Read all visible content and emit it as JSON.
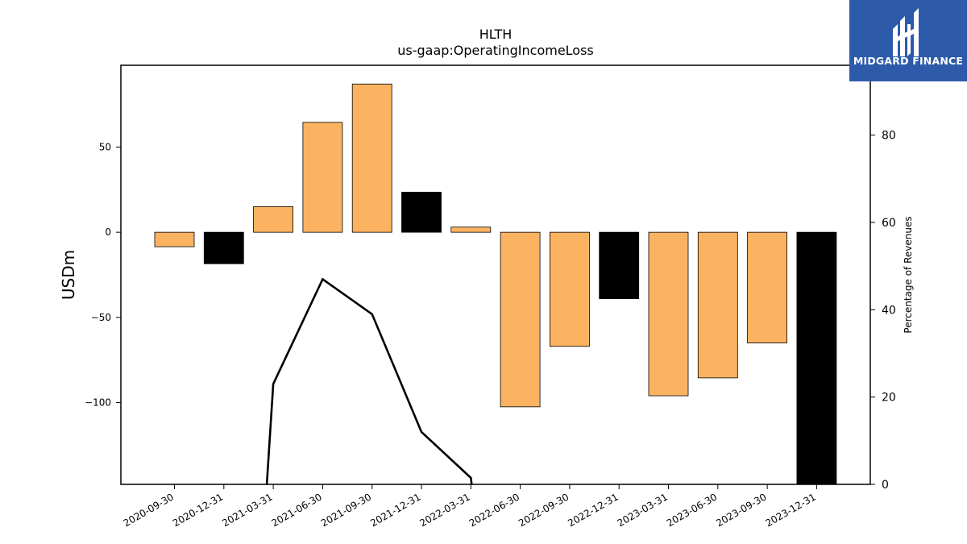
{
  "chart_data": {
    "type": "bar",
    "title": "HLTH",
    "subtitle": "us-gaap:OperatingIncomeLoss",
    "ylabel": "USDm",
    "y2label": "Percentage of Revenues",
    "ylim": [
      -148,
      98
    ],
    "y2lim": [
      0,
      96
    ],
    "yticks": [
      -100,
      -50,
      0,
      50
    ],
    "y2ticks": [
      0,
      20,
      40,
      60,
      80
    ],
    "categories": [
      "2020-09-30",
      "2020-12-31",
      "2021-03-31",
      "2021-06-30",
      "2021-09-30",
      "2021-12-31",
      "2022-03-31",
      "2022-06-30",
      "2022-09-30",
      "2022-12-31",
      "2023-03-31",
      "2023-06-30",
      "2023-09-30",
      "2023-12-31"
    ],
    "series": [
      {
        "values": [
          -8.5,
          -18.5,
          15,
          64.5,
          87,
          23.5,
          3,
          -102.5,
          -67,
          -39,
          -96,
          -85.5,
          -65,
          -148
        ],
        "colors": [
          "#fbb362",
          "#000000",
          "#fbb362",
          "#fbb362",
          "#fbb362",
          "#000000",
          "#fbb362",
          "#fbb362",
          "#fbb362",
          "#000000",
          "#fbb362",
          "#fbb362",
          "#fbb362",
          "#000000"
        ]
      },
      {
        "type": "line",
        "axis": "secondary",
        "x": [
          "2021-03-31",
          "2021-03-31",
          "2021-06-30",
          "2021-09-30",
          "2021-12-31",
          "2022-03-31",
          "2022-03-31"
        ],
        "values": [
          0,
          23,
          47,
          39,
          12,
          1.5,
          0
        ],
        "color": "#000000"
      }
    ],
    "grid": false
  },
  "logo": {
    "text": "MIDGARD FINANCE",
    "background": "#2d5baa"
  }
}
